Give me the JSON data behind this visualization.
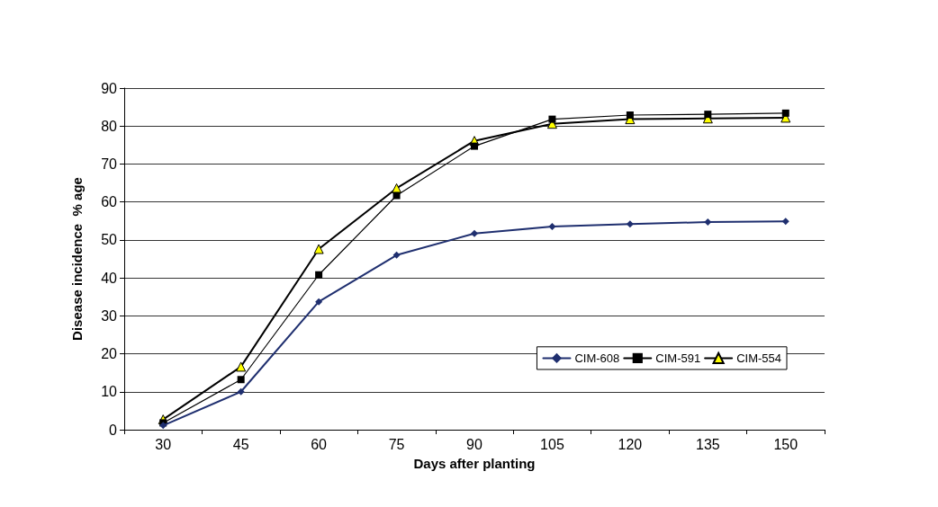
{
  "chart_data": {
    "type": "line",
    "xlabel": "Days after planting",
    "ylabel": "Disease incidence  % age",
    "categories": [
      "30",
      "45",
      "60",
      "75",
      "90",
      "105",
      "120",
      "135",
      "150"
    ],
    "series": [
      {
        "name": "CIM-608",
        "color": "#1f2f6f",
        "marker": "diamond",
        "values": [
          1.1,
          10,
          33.7,
          46,
          51.7,
          53.5,
          54.2,
          54.7,
          54.9
        ]
      },
      {
        "name": "CIM-591",
        "color": "#000000",
        "marker": "square",
        "values": [
          1.8,
          13.2,
          40.8,
          61.7,
          74.7,
          81.8,
          82.9,
          83.1,
          83.4
        ]
      },
      {
        "name": "CIM-554",
        "color": "#ffff00",
        "marker": "triangle",
        "values": [
          2.7,
          16.6,
          47.6,
          63.6,
          76.1,
          80.6,
          81.8,
          82,
          82.2
        ]
      }
    ],
    "ylim": [
      0,
      90
    ],
    "yticks": [
      0,
      10,
      20,
      30,
      40,
      50,
      60,
      70,
      80,
      90
    ],
    "grid": "y",
    "legend": "bottom right",
    "line_style": "solid"
  }
}
